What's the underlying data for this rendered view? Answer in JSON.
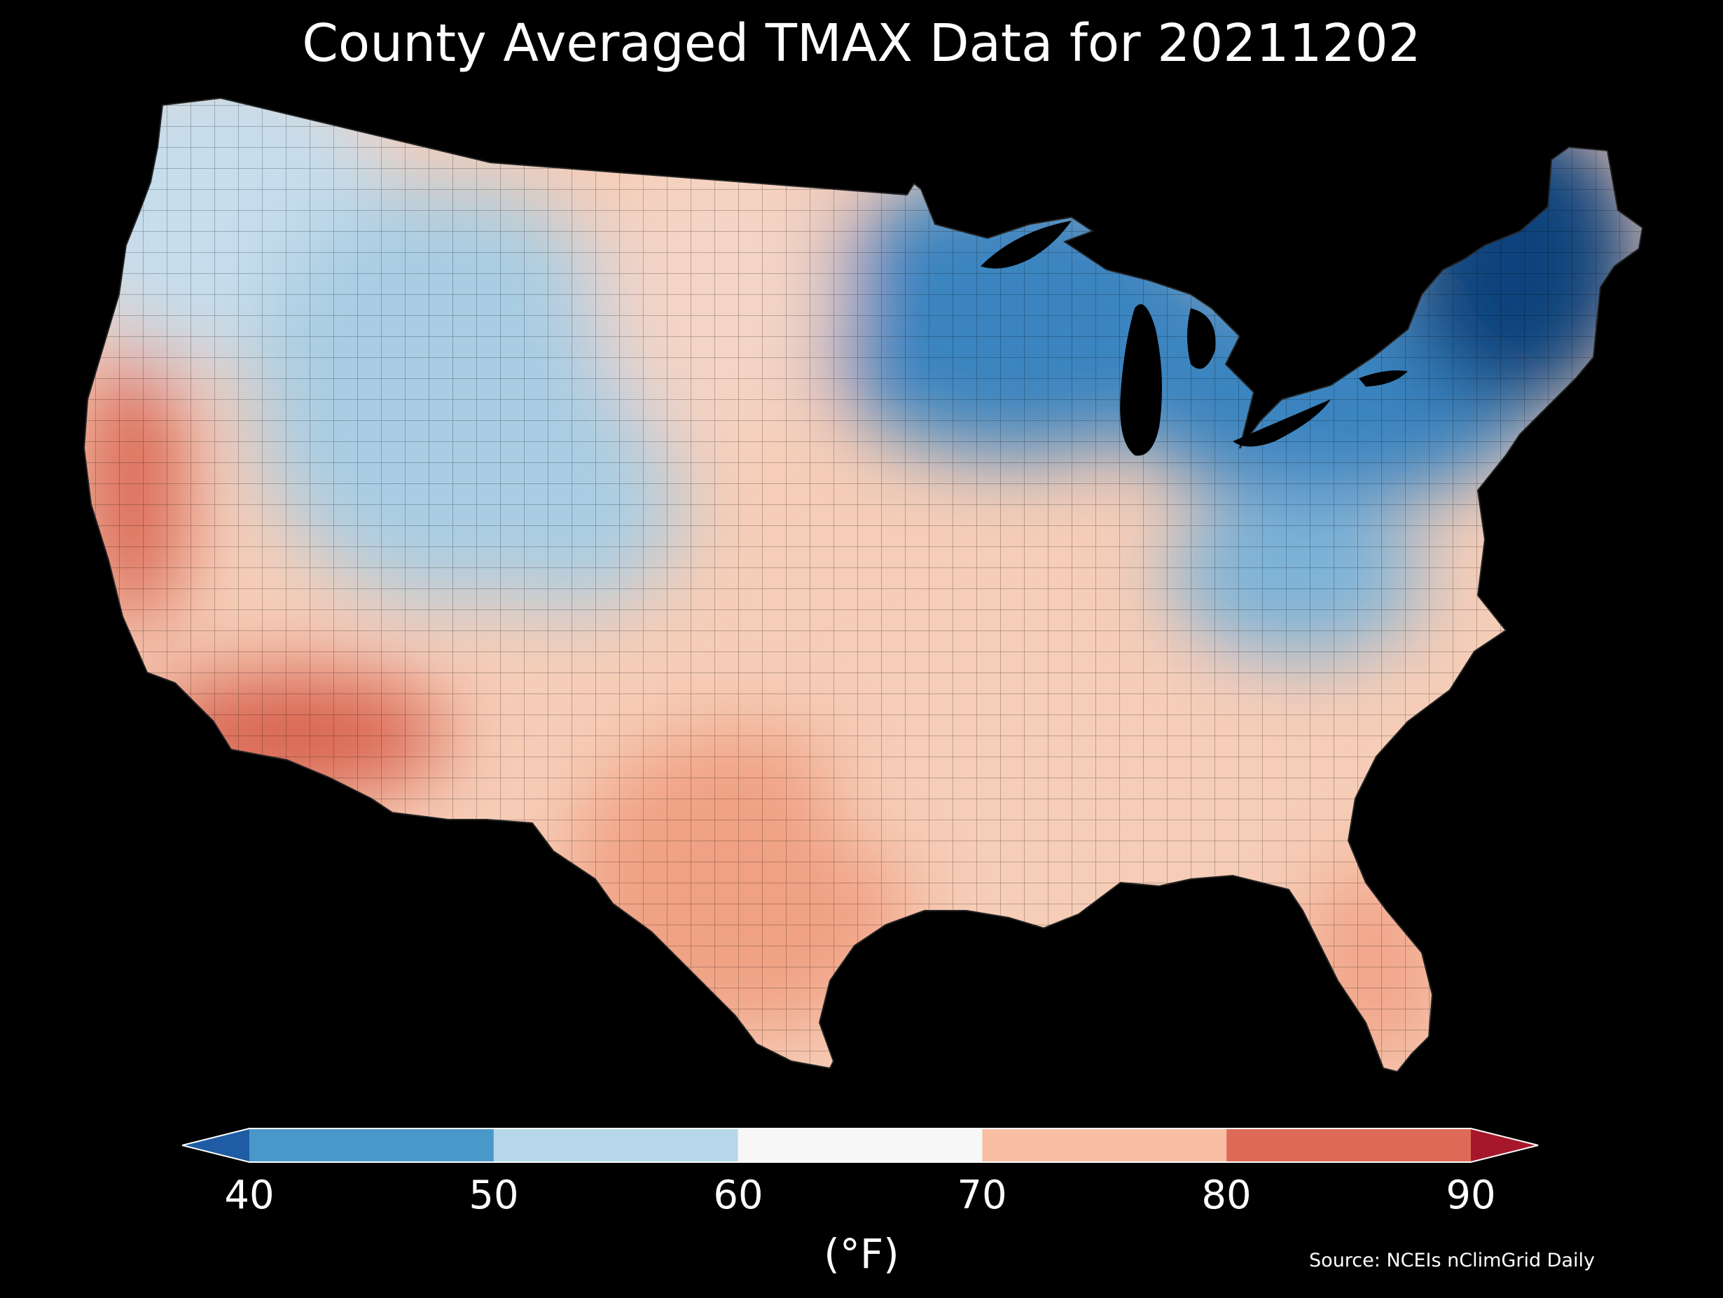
{
  "map": {
    "title": "County Averaged TMAX Data for 20211202",
    "colorbar": {
      "ticks": [
        "40",
        "50",
        "60",
        "70",
        "80",
        "90"
      ],
      "colors": [
        "#4a98c9",
        "#b6d7e9",
        "#f7f7f7",
        "#f8bfa4",
        "#dd6a56"
      ],
      "extend_colors": [
        "#1f5ca3",
        "#a6172b"
      ],
      "unit_label": "(°F)",
      "extend": "both"
    },
    "source": "Source: NCEIs nClimGrid Daily",
    "background": "#000000",
    "region_colors": {
      "northeast": "#11437c",
      "great_lakes": "#3a84c0",
      "mid_atlantic": "#7db3d8",
      "northern_plains": "#f4d4c5",
      "rockies": "#a9cde3",
      "pacific_northwest": "#c6ddec",
      "southwest": "#d86450",
      "texas_south": "#f0a183",
      "southeast": "#f6cdb7",
      "florida": "#f1a68a"
    }
  }
}
